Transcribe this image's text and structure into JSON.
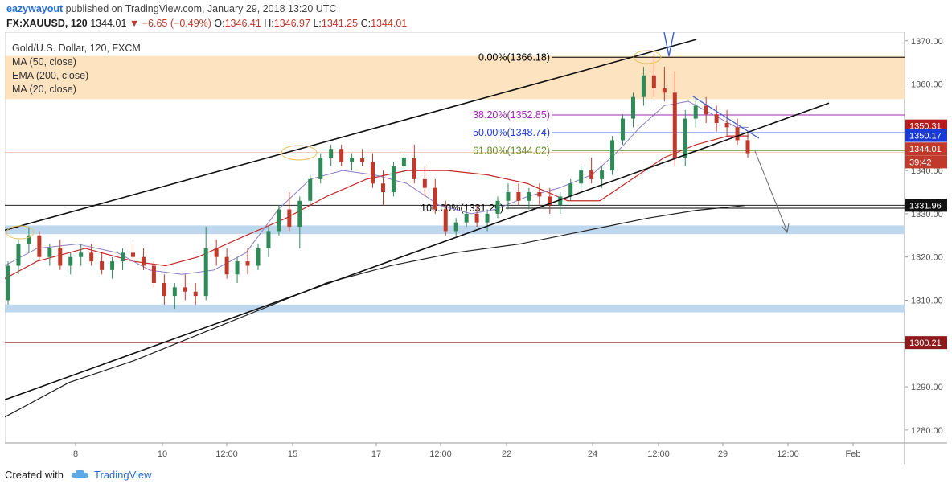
{
  "header": {
    "username": "eazywayout",
    "published_text": "published on TradingView.com, January 29, 2018 13:20 UTC",
    "symbol": "FX:XAUUSD, 120",
    "last": "1344.01",
    "change": "−6.65 (−0.49%)",
    "open_label": "O:",
    "open": "1346.41",
    "high_label": "H:",
    "high": "1346.97",
    "low_label": "L:",
    "low": "1341.25",
    "close_label": "C:",
    "close": "1344.01"
  },
  "legend": {
    "title": "Gold/U.S. Dollar, 120, FXCM",
    "studies": [
      "MA (50, close)",
      "EMA (200, close)",
      "MA (20, close)"
    ]
  },
  "footer": {
    "created_with": "Created with",
    "brand": "TradingView"
  },
  "colors": {
    "up": "#2e8b57",
    "down": "#c0392b",
    "ma50": "#c62828",
    "ema200": "#222222",
    "ma20": "#8e7cc3",
    "resistance_zone": "#fcdcb0",
    "support_zone": "#bdd7ee",
    "fib_0": "#000000",
    "fib_382": "#9c27b0",
    "fib_50": "#1a3ad8",
    "fib_618": "#6b8e23"
  },
  "chart_data": {
    "type": "candlestick",
    "symbol": "Gold/U.S. Dollar",
    "timeframe": "120",
    "ylim": [
      1277,
      1372
    ],
    "y_ticks": [
      "1280.00",
      "1290.00",
      "1300.00",
      "1310.00",
      "1320.00",
      "1330.00",
      "1340.00",
      "1350.00",
      "1360.00",
      "1370.00"
    ],
    "x_ticks": [
      "8",
      "10",
      "12:00",
      "15",
      "17",
      "12:00",
      "22",
      "24",
      "12:00",
      "29",
      "12:00",
      "Feb"
    ],
    "price_labels": {
      "ma50": "1350.31",
      "last_price": "1344.01",
      "countdown": "39:42",
      "ma20": "1350.17",
      "level_a": "1331.96",
      "level_b": "1300.21"
    },
    "fibonacci": [
      {
        "label": "0.00%(1366.18)",
        "value": 1366.18
      },
      {
        "label": "38.20%(1352.85)",
        "value": 1352.85
      },
      {
        "label": "50.00%(1348.74)",
        "value": 1348.74
      },
      {
        "label": "61.80%(1344.62)",
        "value": 1344.62
      },
      {
        "label": "100.00%(1331.29)",
        "value": 1331.29
      }
    ],
    "horizontal_levels": [
      1331.96,
      1300.21
    ],
    "zones": [
      {
        "type": "resistance",
        "from": 1356.5,
        "to": 1366.5
      },
      {
        "type": "support",
        "from": 1325.3,
        "to": 1327.3
      },
      {
        "type": "support",
        "from": 1307.2,
        "to": 1309.0
      }
    ],
    "channel": {
      "upper": [
        [
          0,
          1326.2
        ],
        [
          860,
          1370.3
        ]
      ],
      "lower": [
        [
          0,
          1287.0
        ],
        [
          1025,
          1355.6
        ]
      ]
    },
    "ma50": [
      [
        0,
        1315
      ],
      [
        40,
        1319
      ],
      [
        100,
        1322
      ],
      [
        160,
        1319
      ],
      [
        200,
        1318
      ],
      [
        240,
        1320
      ],
      [
        300,
        1325
      ],
      [
        350,
        1329
      ],
      [
        400,
        1334
      ],
      [
        450,
        1338
      ],
      [
        500,
        1340
      ],
      [
        550,
        1340
      ],
      [
        600,
        1339
      ],
      [
        650,
        1337
      ],
      [
        700,
        1333
      ],
      [
        740,
        1333
      ],
      [
        780,
        1338
      ],
      [
        820,
        1343
      ],
      [
        860,
        1346
      ],
      [
        900,
        1348
      ],
      [
        925,
        1348
      ]
    ],
    "ema200": [
      [
        0,
        1283
      ],
      [
        80,
        1291
      ],
      [
        160,
        1296
      ],
      [
        240,
        1302
      ],
      [
        320,
        1308
      ],
      [
        400,
        1314
      ],
      [
        480,
        1318
      ],
      [
        560,
        1321
      ],
      [
        640,
        1323
      ],
      [
        720,
        1326
      ],
      [
        800,
        1329
      ],
      [
        860,
        1330.8
      ],
      [
        920,
        1331.9
      ]
    ],
    "ma20": [
      [
        0,
        1318
      ],
      [
        40,
        1322
      ],
      [
        90,
        1323
      ],
      [
        140,
        1321
      ],
      [
        180,
        1317
      ],
      [
        220,
        1316
      ],
      [
        260,
        1317
      ],
      [
        300,
        1321
      ],
      [
        340,
        1331
      ],
      [
        380,
        1338
      ],
      [
        420,
        1340
      ],
      [
        460,
        1339
      ],
      [
        500,
        1337
      ],
      [
        540,
        1332
      ],
      [
        580,
        1330
      ],
      [
        610,
        1331
      ],
      [
        650,
        1334
      ],
      [
        690,
        1336
      ],
      [
        730,
        1339
      ],
      [
        760,
        1344
      ],
      [
        790,
        1350
      ],
      [
        820,
        1355
      ],
      [
        850,
        1356
      ],
      [
        880,
        1353
      ],
      [
        910,
        1350
      ],
      [
        925,
        1350
      ]
    ],
    "candles": [
      [
        1310,
        1319,
        1309,
        1318
      ],
      [
        1318,
        1324,
        1316,
        1323
      ],
      [
        1323,
        1327,
        1321,
        1325
      ],
      [
        1325,
        1326,
        1319,
        1320
      ],
      [
        1320,
        1323,
        1318,
        1322
      ],
      [
        1322,
        1324,
        1317,
        1318
      ],
      [
        1318,
        1321,
        1316,
        1320
      ],
      [
        1320,
        1323,
        1318,
        1321
      ],
      [
        1321,
        1323,
        1318,
        1319
      ],
      [
        1319,
        1321,
        1316,
        1317
      ],
      [
        1317,
        1320,
        1315,
        1319
      ],
      [
        1319,
        1322,
        1317,
        1321
      ],
      [
        1321,
        1323,
        1319,
        1320
      ],
      [
        1320,
        1322,
        1317,
        1318
      ],
      [
        1318,
        1319,
        1313,
        1314
      ],
      [
        1314,
        1316,
        1309,
        1311
      ],
      [
        1311,
        1314,
        1308,
        1313
      ],
      [
        1313,
        1316,
        1310,
        1312
      ],
      [
        1312,
        1314,
        1309,
        1311
      ],
      [
        1311,
        1327,
        1310,
        1322
      ],
      [
        1322,
        1324,
        1318,
        1320
      ],
      [
        1320,
        1322,
        1315,
        1316
      ],
      [
        1316,
        1320,
        1314,
        1319
      ],
      [
        1319,
        1322,
        1316,
        1318
      ],
      [
        1318,
        1323,
        1317,
        1322
      ],
      [
        1322,
        1327,
        1320,
        1326
      ],
      [
        1326,
        1332,
        1325,
        1331
      ],
      [
        1331,
        1335,
        1326,
        1327
      ],
      [
        1327,
        1334,
        1322,
        1333
      ],
      [
        1333,
        1339,
        1332,
        1338
      ],
      [
        1338,
        1344,
        1337,
        1343
      ],
      [
        1343,
        1346,
        1341,
        1345
      ],
      [
        1345,
        1346,
        1341,
        1342
      ],
      [
        1342,
        1344,
        1340,
        1343
      ],
      [
        1343,
        1345,
        1341,
        1342
      ],
      [
        1342,
        1344,
        1336,
        1337
      ],
      [
        1337,
        1340,
        1332,
        1335
      ],
      [
        1335,
        1342,
        1334,
        1341
      ],
      [
        1341,
        1344,
        1339,
        1343
      ],
      [
        1343,
        1346,
        1337,
        1338
      ],
      [
        1338,
        1341,
        1334,
        1336
      ],
      [
        1336,
        1338,
        1330,
        1331
      ],
      [
        1331,
        1333,
        1325,
        1326
      ],
      [
        1326,
        1329,
        1325,
        1328
      ],
      [
        1328,
        1331,
        1327,
        1330
      ],
      [
        1330,
        1332,
        1327,
        1328
      ],
      [
        1328,
        1331,
        1326,
        1330
      ],
      [
        1330,
        1334,
        1329,
        1333
      ],
      [
        1333,
        1337,
        1331,
        1335
      ],
      [
        1335,
        1337,
        1332,
        1333
      ],
      [
        1333,
        1336,
        1331,
        1335
      ],
      [
        1335,
        1337,
        1332,
        1334
      ],
      [
        1334,
        1336,
        1330,
        1332
      ],
      [
        1332,
        1335,
        1330,
        1334
      ],
      [
        1334,
        1338,
        1333,
        1337
      ],
      [
        1337,
        1341,
        1336,
        1340
      ],
      [
        1340,
        1343,
        1337,
        1338
      ],
      [
        1338,
        1341,
        1336,
        1340
      ],
      [
        1340,
        1348,
        1339,
        1347
      ],
      [
        1347,
        1353,
        1346,
        1352
      ],
      [
        1352,
        1358,
        1350,
        1357
      ],
      [
        1357,
        1364,
        1355,
        1362
      ],
      [
        1362,
        1367,
        1357,
        1359
      ],
      [
        1359,
        1364,
        1356,
        1358
      ],
      [
        1358,
        1363,
        1341,
        1343
      ],
      [
        1343,
        1354,
        1341,
        1352
      ],
      [
        1352,
        1357,
        1350,
        1355
      ],
      [
        1355,
        1357,
        1351,
        1353
      ],
      [
        1353,
        1355,
        1349,
        1351
      ],
      [
        1351,
        1354,
        1348,
        1350
      ],
      [
        1350,
        1352,
        1346,
        1347
      ],
      [
        1347,
        1349,
        1343,
        1344
      ]
    ]
  }
}
